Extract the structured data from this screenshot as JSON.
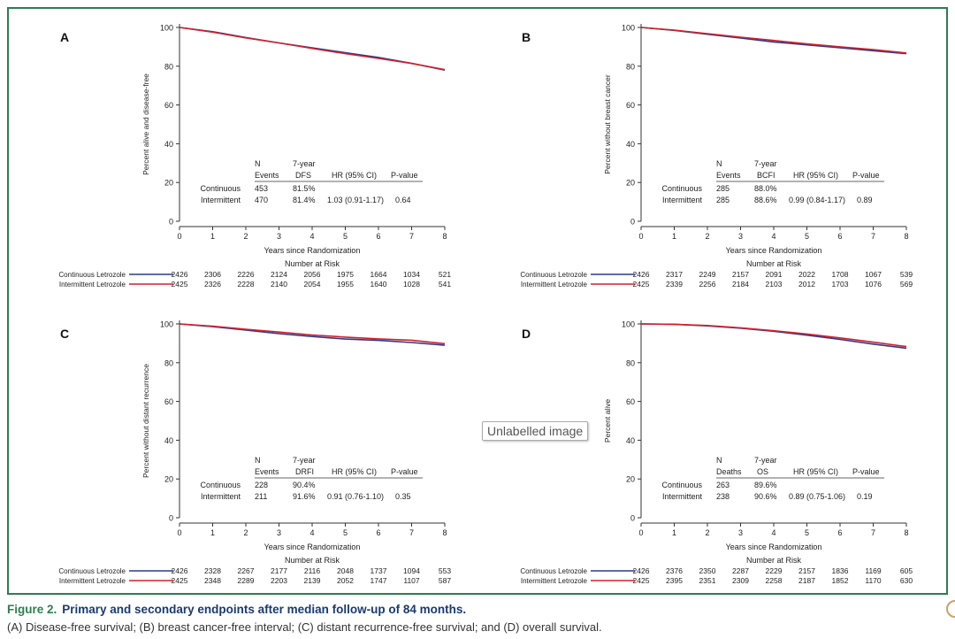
{
  "colors": {
    "continuous": "#2b3a8c",
    "intermittent": "#d0202a",
    "frame": "#2e7d4f"
  },
  "overlay": {
    "badge_text": "Unlabelled image"
  },
  "caption": {
    "label": "Figure 2.",
    "title": "Primary and secondary endpoints after median follow-up of 84 months.",
    "body": "(A) Disease-free survival; (B) breast cancer-free interval; (C) distant recurrence-free survival; and (D) overall survival."
  },
  "chart_data": [
    {
      "type": "line",
      "panel": "A",
      "ylabel": "Percent alive and disease-free",
      "xlabel": "Years since Randomization",
      "xlim": [
        0,
        8
      ],
      "ylim": [
        0,
        100
      ],
      "xticks": [
        "0",
        "1",
        "2",
        "3",
        "4",
        "5",
        "6",
        "7",
        "8"
      ],
      "yticks": [
        "0",
        "20",
        "40",
        "60",
        "80",
        "100"
      ],
      "series": [
        {
          "name": "Continuous Letrozole",
          "x": [
            0,
            1,
            2,
            3,
            4,
            5,
            6,
            7,
            8
          ],
          "values": [
            100,
            97.8,
            94.8,
            92,
            89.5,
            87,
            84.5,
            81.5,
            78
          ]
        },
        {
          "name": "Intermittent Letrozole",
          "x": [
            0,
            1,
            2,
            3,
            4,
            5,
            6,
            7,
            8
          ],
          "values": [
            100,
            97.6,
            94.6,
            92,
            89.2,
            86.5,
            84,
            81.4,
            78.2
          ]
        }
      ],
      "table": {
        "headers_top": [
          "N",
          "7-year"
        ],
        "headers": [
          "Events",
          "DFS",
          "HR (95% CI)",
          "P-value"
        ],
        "rows": [
          {
            "group": "Continuous",
            "n": "453",
            "rate": "81.5%",
            "hr": "",
            "p": ""
          },
          {
            "group": "Intermittent",
            "n": "470",
            "rate": "81.4%",
            "hr": "1.03 (0.91-1.17)",
            "p": "0.64"
          }
        ]
      },
      "risk": {
        "title": "Number at Risk",
        "rows": [
          {
            "label": "Continuous Letrozole",
            "values": [
              "2426",
              "2306",
              "2226",
              "2124",
              "2056",
              "1975",
              "1664",
              "1034",
              "521"
            ]
          },
          {
            "label": "Intermittent Letrozole",
            "values": [
              "2425",
              "2326",
              "2228",
              "2140",
              "2054",
              "1955",
              "1640",
              "1028",
              "541"
            ]
          }
        ]
      }
    },
    {
      "type": "line",
      "panel": "B",
      "ylabel": "Percent without breast cancer",
      "xlabel": "Years since Randomization",
      "xlim": [
        0,
        8
      ],
      "ylim": [
        0,
        100
      ],
      "xticks": [
        "0",
        "1",
        "2",
        "3",
        "4",
        "5",
        "6",
        "7",
        "8"
      ],
      "yticks": [
        "0",
        "20",
        "40",
        "60",
        "80",
        "100"
      ],
      "series": [
        {
          "name": "Continuous Letrozole",
          "x": [
            0,
            1,
            2,
            3,
            4,
            5,
            6,
            7,
            8
          ],
          "values": [
            100,
            98.5,
            96.5,
            94.5,
            92.5,
            91,
            89.5,
            88,
            86.5
          ]
        },
        {
          "name": "Intermittent Letrozole",
          "x": [
            0,
            1,
            2,
            3,
            4,
            5,
            6,
            7,
            8
          ],
          "values": [
            100,
            98.6,
            96.8,
            95,
            93.3,
            91.5,
            90,
            88.6,
            86.8
          ]
        }
      ],
      "table": {
        "headers_top": [
          "N",
          "7-year"
        ],
        "headers": [
          "Events",
          "BCFI",
          "HR (95% CI)",
          "P-value"
        ],
        "rows": [
          {
            "group": "Continuous",
            "n": "285",
            "rate": "88.0%",
            "hr": "",
            "p": ""
          },
          {
            "group": "Intermittent",
            "n": "285",
            "rate": "88.6%",
            "hr": "0.99 (0.84-1.17)",
            "p": "0.89"
          }
        ]
      },
      "risk": {
        "title": "Number at Risk",
        "rows": [
          {
            "label": "Continuous Letrozole",
            "values": [
              "2426",
              "2317",
              "2249",
              "2157",
              "2091",
              "2022",
              "1708",
              "1067",
              "539"
            ]
          },
          {
            "label": "Intermittent Letrozole",
            "values": [
              "2425",
              "2339",
              "2256",
              "2184",
              "2103",
              "2012",
              "1703",
              "1076",
              "569"
            ]
          }
        ]
      }
    },
    {
      "type": "line",
      "panel": "C",
      "ylabel": "Percent without distant recurrence",
      "xlabel": "Years since Randomization",
      "xlim": [
        0,
        8
      ],
      "ylim": [
        0,
        100
      ],
      "xticks": [
        "0",
        "1",
        "2",
        "3",
        "4",
        "5",
        "6",
        "7",
        "8"
      ],
      "yticks": [
        "0",
        "20",
        "40",
        "60",
        "80",
        "100"
      ],
      "series": [
        {
          "name": "Continuous Letrozole",
          "x": [
            0,
            1,
            2,
            3,
            4,
            5,
            6,
            7,
            8
          ],
          "values": [
            100,
            98.6,
            96.8,
            95,
            93.5,
            92.2,
            91.5,
            90.4,
            89
          ]
        },
        {
          "name": "Intermittent Letrozole",
          "x": [
            0,
            1,
            2,
            3,
            4,
            5,
            6,
            7,
            8
          ],
          "values": [
            100,
            98.8,
            97.2,
            95.8,
            94.3,
            93.2,
            92.3,
            91.6,
            89.8
          ]
        }
      ],
      "table": {
        "headers_top": [
          "N",
          "7-year"
        ],
        "headers": [
          "Events",
          "DRFI",
          "HR (95% CI)",
          "P-value"
        ],
        "rows": [
          {
            "group": "Continuous",
            "n": "228",
            "rate": "90.4%",
            "hr": "",
            "p": ""
          },
          {
            "group": "Intermittent",
            "n": "211",
            "rate": "91.6%",
            "hr": "0.91 (0.76-1.10)",
            "p": "0.35"
          }
        ]
      },
      "risk": {
        "title": "Number at Risk",
        "rows": [
          {
            "label": "Continuous Letrozole",
            "values": [
              "2426",
              "2328",
              "2267",
              "2177",
              "2116",
              "2048",
              "1737",
              "1094",
              "553"
            ]
          },
          {
            "label": "Intermittent Letrozole",
            "values": [
              "2425",
              "2348",
              "2289",
              "2203",
              "2139",
              "2052",
              "1747",
              "1107",
              "587"
            ]
          }
        ]
      }
    },
    {
      "type": "line",
      "panel": "D",
      "ylabel": "Percent alive",
      "xlabel": "Years since Randomization",
      "xlim": [
        0,
        8
      ],
      "ylim": [
        0,
        100
      ],
      "xticks": [
        "0",
        "1",
        "2",
        "3",
        "4",
        "5",
        "6",
        "7",
        "8"
      ],
      "yticks": [
        "0",
        "20",
        "40",
        "60",
        "80",
        "100"
      ],
      "series": [
        {
          "name": "Continuous Letrozole",
          "x": [
            0,
            1,
            2,
            3,
            4,
            5,
            6,
            7,
            8
          ],
          "values": [
            100,
            99.8,
            99,
            97.8,
            96.2,
            94.2,
            92,
            89.6,
            87.5
          ]
        },
        {
          "name": "Intermittent Letrozole",
          "x": [
            0,
            1,
            2,
            3,
            4,
            5,
            6,
            7,
            8
          ],
          "values": [
            100,
            99.8,
            99.2,
            98,
            96.5,
            94.8,
            92.8,
            90.6,
            88.3
          ]
        }
      ],
      "table": {
        "headers_top": [
          "N",
          "7-year"
        ],
        "headers": [
          "Deaths",
          "OS",
          "HR (95% CI)",
          "P-value"
        ],
        "rows": [
          {
            "group": "Continuous",
            "n": "263",
            "rate": "89.6%",
            "hr": "",
            "p": ""
          },
          {
            "group": "Intermittent",
            "n": "238",
            "rate": "90.6%",
            "hr": "0.89 (0.75-1.06)",
            "p": "0.19"
          }
        ]
      },
      "risk": {
        "title": "Number at Risk",
        "rows": [
          {
            "label": "Continuous Letrozole",
            "values": [
              "2426",
              "2376",
              "2350",
              "2287",
              "2229",
              "2157",
              "1836",
              "1169",
              "605"
            ]
          },
          {
            "label": "Intermittent Letrozole",
            "values": [
              "2425",
              "2395",
              "2351",
              "2309",
              "2258",
              "2187",
              "1852",
              "1170",
              "630"
            ]
          }
        ]
      }
    }
  ]
}
